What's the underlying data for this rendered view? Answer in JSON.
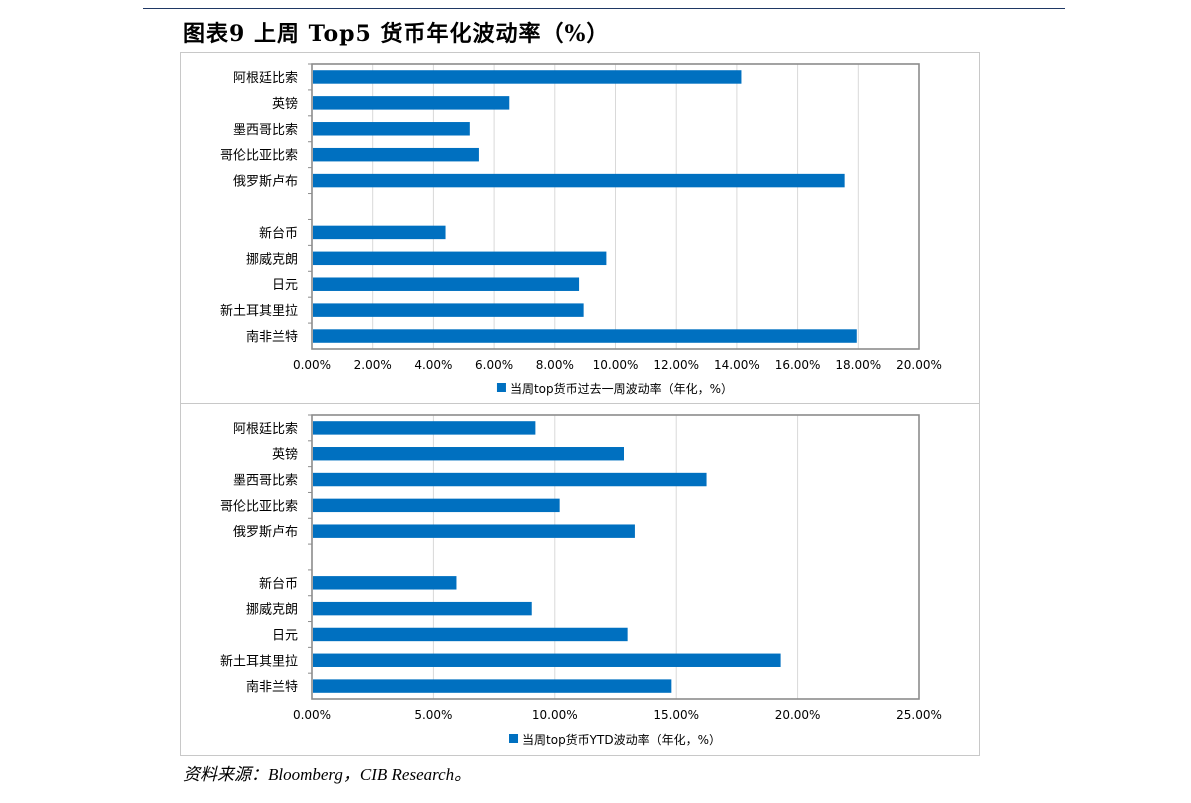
{
  "figure": {
    "title": "图表9   上周 Top5 货币年化波动率（%）",
    "source": "资料来源：Bloomberg，CIB Research。"
  },
  "colors": {
    "bar": "#0070c0",
    "grid": "#d9d9d9",
    "axis": "#8c8c8c"
  },
  "chart_data": [
    {
      "type": "bar",
      "orientation": "horizontal",
      "categories": [
        "阿根廷比索",
        "英镑",
        "墨西哥比索",
        "哥伦比亚比索",
        "俄罗斯卢布",
        "",
        "新台币",
        "挪威克朗",
        "日元",
        "新土耳其里拉",
        "南非兰特"
      ],
      "series": [
        {
          "name": "当周top货币过去一周波动率（年化，%）",
          "values": [
            14.15,
            6.5,
            5.2,
            5.5,
            17.55,
            null,
            4.4,
            9.7,
            8.8,
            8.95,
            17.95
          ]
        }
      ],
      "xlim": [
        0,
        0.2
      ],
      "xticks": [
        "0.00%",
        "2.00%",
        "4.00%",
        "6.00%",
        "8.00%",
        "10.00%",
        "12.00%",
        "14.00%",
        "16.00%",
        "18.00%",
        "20.00%"
      ],
      "grid": true,
      "legend": "bottom"
    },
    {
      "type": "bar",
      "orientation": "horizontal",
      "categories": [
        "阿根廷比索",
        "英镑",
        "墨西哥比索",
        "哥伦比亚比索",
        "俄罗斯卢布",
        "",
        "新台币",
        "挪威克朗",
        "日元",
        "新土耳其里拉",
        "南非兰特"
      ],
      "series": [
        {
          "name": "当周top货币YTD波动率（年化，%）",
          "values": [
            9.2,
            12.85,
            16.25,
            10.2,
            13.3,
            null,
            5.95,
            9.05,
            13.0,
            19.3,
            14.8
          ]
        }
      ],
      "xlim": [
        0,
        0.25
      ],
      "xticks": [
        "0.00%",
        "5.00%",
        "10.00%",
        "15.00%",
        "20.00%",
        "25.00%"
      ],
      "grid": true,
      "legend": "bottom"
    }
  ]
}
